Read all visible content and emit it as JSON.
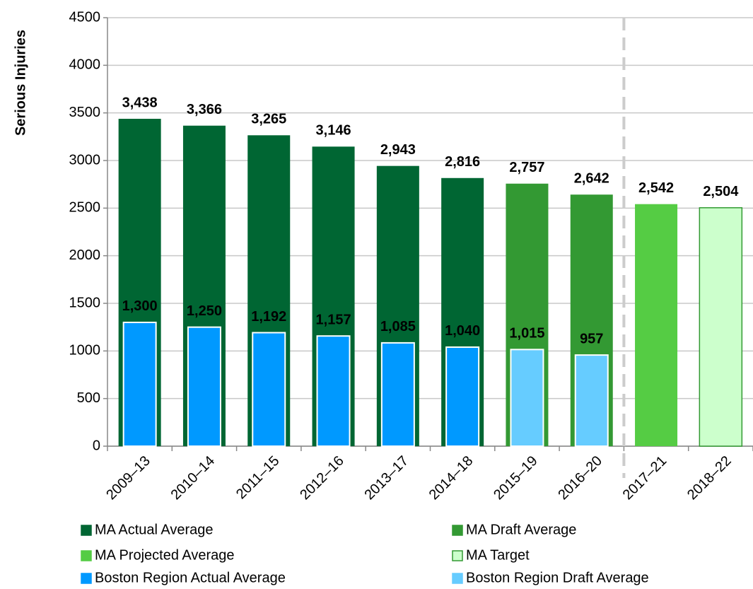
{
  "chart_data": {
    "type": "bar",
    "ylabel": "Serious Injuries",
    "categories": [
      "2009–13",
      "2010–14",
      "2011–15",
      "2012–16",
      "2013–17",
      "2014–18",
      "2015–19",
      "2016–20",
      "2017–21",
      "2018–22"
    ],
    "series": [
      {
        "name": "MA Actual Average",
        "color": "#006633",
        "label_color": "#006633",
        "values": [
          3438,
          3366,
          3265,
          3146,
          2943,
          2816,
          null,
          null,
          null,
          null
        ],
        "value_labels": [
          "3,438",
          "3,366",
          "3,265",
          "3,146",
          "2,943",
          "2,816",
          null,
          null,
          null,
          null
        ]
      },
      {
        "name": "MA Draft Average",
        "color": "#339933",
        "label_color": "#006633",
        "values": [
          null,
          null,
          null,
          null,
          null,
          null,
          2757,
          2642,
          null,
          null
        ],
        "value_labels": [
          null,
          null,
          null,
          null,
          null,
          null,
          "2,757",
          "2,642",
          null,
          null
        ]
      },
      {
        "name": "MA Projected Average",
        "color": "#55cc44",
        "label_color": "#006633",
        "values": [
          null,
          null,
          null,
          null,
          null,
          null,
          null,
          null,
          2542,
          null
        ],
        "value_labels": [
          null,
          null,
          null,
          null,
          null,
          null,
          null,
          null,
          "2,542",
          null
        ]
      },
      {
        "name": "MA Target",
        "color": "#ccffcc",
        "edgecolor": "#339933",
        "label_color": "#006633",
        "values": [
          null,
          null,
          null,
          null,
          null,
          null,
          null,
          null,
          null,
          2504
        ],
        "value_labels": [
          null,
          null,
          null,
          null,
          null,
          null,
          null,
          null,
          null,
          "2,504"
        ]
      },
      {
        "name": "Boston Region Actual Average",
        "color": "#0099ff",
        "label_color": "#ffffff",
        "values": [
          1300,
          1250,
          1192,
          1157,
          1085,
          1040,
          null,
          null,
          null,
          null
        ],
        "value_labels": [
          "1,300",
          "1,250",
          "1,192",
          "1,157",
          "1,085",
          "1,040",
          null,
          null,
          null,
          null
        ]
      },
      {
        "name": "Boston Region Draft Average",
        "color": "#66ccff",
        "label_color": "#ffffff",
        "values": [
          null,
          null,
          null,
          null,
          null,
          null,
          1015,
          957,
          null,
          null
        ],
        "value_labels": [
          null,
          null,
          null,
          null,
          null,
          null,
          "1,015",
          null,
          null,
          null
        ]
      }
    ],
    "ylim": [
      0,
      4500
    ],
    "yticks": [
      0,
      500,
      1000,
      1500,
      2000,
      2500,
      3000,
      3500,
      4000,
      4500
    ],
    "grid": true
  }
}
